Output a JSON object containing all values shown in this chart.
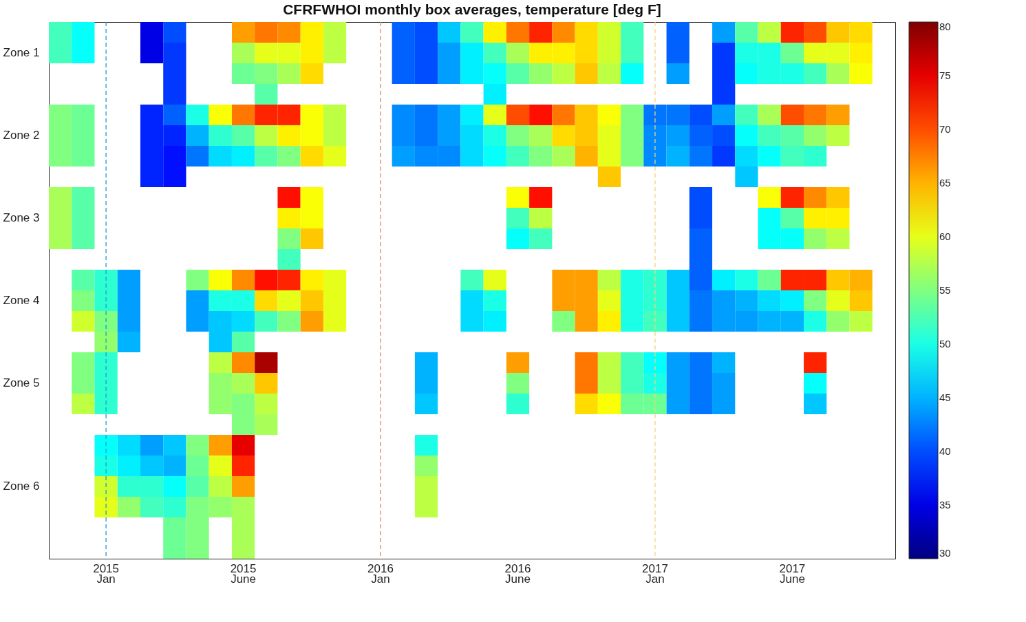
{
  "chart_data": {
    "type": "heatmap",
    "title": "CFRFWHOI monthly box averages, temperature [deg F]",
    "categories": [
      null,
      null,
      "2015\nJan",
      null,
      null,
      null,
      null,
      null,
      "2015\nJune",
      null,
      null,
      null,
      null,
      null,
      "2016\nJan",
      null,
      null,
      null,
      null,
      null,
      "2016\nJune",
      null,
      null,
      null,
      null,
      null,
      "2017\nJan",
      null,
      null,
      null,
      null,
      null,
      "2017\nJune",
      null,
      null,
      null,
      null
    ],
    "y_categories": [
      null,
      "Zone 1",
      null,
      null,
      null,
      "Zone 2",
      null,
      null,
      null,
      "Zone 3",
      null,
      null,
      null,
      "Zone 4",
      null,
      null,
      null,
      "Zone 5",
      null,
      null,
      null,
      null,
      "Zone 6",
      null,
      null,
      null
    ],
    "cells": [
      [
        52,
        49,
        null,
        null,
        35,
        40,
        null,
        null,
        66,
        68,
        67,
        62,
        58,
        null,
        null,
        41,
        40,
        46,
        52,
        62,
        68,
        72,
        67,
        63,
        59,
        52,
        null,
        41,
        null,
        44,
        53,
        58,
        72,
        70,
        64,
        63,
        null
      ],
      [
        52,
        49,
        null,
        null,
        35,
        39,
        null,
        null,
        57,
        60,
        60,
        62,
        58,
        null,
        null,
        41,
        40,
        44,
        48,
        52,
        57,
        62,
        62,
        63,
        59,
        52,
        null,
        41,
        null,
        39,
        50,
        50,
        54,
        60,
        60,
        62,
        null
      ],
      [
        null,
        null,
        null,
        null,
        null,
        39,
        null,
        null,
        54,
        55,
        57,
        63,
        null,
        null,
        null,
        41,
        40,
        44,
        48,
        49,
        53,
        56,
        58,
        64,
        58,
        49,
        null,
        44,
        null,
        39,
        49,
        50,
        50,
        52,
        57,
        61,
        null
      ],
      [
        null,
        null,
        null,
        null,
        null,
        39,
        null,
        null,
        null,
        53,
        null,
        null,
        null,
        null,
        null,
        null,
        null,
        null,
        null,
        48,
        null,
        null,
        null,
        null,
        null,
        null,
        null,
        null,
        null,
        39,
        null,
        null,
        null,
        null,
        null,
        null,
        null
      ],
      [
        55,
        54,
        null,
        null,
        38,
        41,
        50,
        61,
        68,
        72,
        72,
        61,
        58,
        null,
        null,
        43,
        42,
        44,
        48,
        60,
        70,
        73,
        68,
        64,
        61,
        55,
        42,
        42,
        40,
        44,
        52,
        57,
        70,
        68,
        66,
        null,
        null
      ],
      [
        55,
        54,
        null,
        null,
        38,
        38,
        45,
        51,
        53,
        58,
        62,
        61,
        58,
        null,
        null,
        43,
        42,
        44,
        47,
        50,
        55,
        57,
        63,
        64,
        60,
        55,
        43,
        44,
        41,
        40,
        49,
        52,
        53,
        56,
        58,
        null,
        null
      ],
      [
        55,
        54,
        null,
        null,
        38,
        37,
        42,
        47,
        48,
        53,
        55,
        63,
        60,
        null,
        null,
        44,
        43,
        43,
        47,
        49,
        52,
        55,
        57,
        65,
        60,
        55,
        43,
        45,
        42,
        39,
        47,
        49,
        52,
        51,
        null,
        null,
        null
      ],
      [
        null,
        null,
        null,
        null,
        38,
        37,
        null,
        null,
        null,
        null,
        null,
        null,
        null,
        null,
        null,
        null,
        null,
        null,
        null,
        null,
        null,
        null,
        null,
        null,
        64,
        null,
        null,
        null,
        null,
        null,
        46,
        null,
        null,
        null,
        null,
        null,
        null
      ],
      [
        57,
        53,
        null,
        null,
        null,
        null,
        null,
        null,
        null,
        null,
        73,
        61,
        null,
        null,
        null,
        null,
        null,
        null,
        null,
        null,
        61,
        73,
        null,
        null,
        null,
        null,
        null,
        null,
        40,
        null,
        null,
        61,
        72,
        67,
        64,
        null,
        null
      ],
      [
        57,
        53,
        null,
        null,
        null,
        null,
        null,
        null,
        null,
        null,
        62,
        61,
        null,
        null,
        null,
        null,
        null,
        null,
        null,
        null,
        52,
        58,
        null,
        null,
        null,
        null,
        null,
        null,
        40,
        null,
        null,
        49,
        53,
        62,
        62,
        null,
        null
      ],
      [
        57,
        53,
        null,
        null,
        null,
        null,
        null,
        null,
        null,
        null,
        55,
        64,
        null,
        null,
        null,
        null,
        null,
        null,
        null,
        null,
        49,
        52,
        null,
        null,
        null,
        null,
        null,
        null,
        41,
        null,
        null,
        49,
        49,
        56,
        58,
        null,
        null
      ],
      [
        null,
        null,
        null,
        null,
        null,
        null,
        null,
        null,
        null,
        null,
        52,
        null,
        null,
        null,
        null,
        null,
        null,
        null,
        null,
        null,
        null,
        null,
        null,
        null,
        null,
        null,
        null,
        null,
        41,
        null,
        null,
        null,
        null,
        null,
        null,
        null,
        null
      ],
      [
        null,
        53,
        51,
        44,
        null,
        null,
        55,
        61,
        67,
        73,
        72,
        62,
        60,
        null,
        null,
        null,
        null,
        null,
        52,
        60,
        null,
        null,
        66,
        66,
        58,
        50,
        51,
        46,
        41,
        48,
        50,
        54,
        72,
        72,
        64,
        65,
        null
      ],
      [
        null,
        55,
        51,
        44,
        null,
        null,
        44,
        50,
        50,
        63,
        60,
        64,
        60,
        null,
        null,
        null,
        null,
        null,
        47,
        50,
        null,
        null,
        66,
        66,
        60,
        50,
        51,
        46,
        42,
        44,
        45,
        47,
        48,
        55,
        60,
        64,
        null
      ],
      [
        null,
        59,
        55,
        44,
        null,
        null,
        44,
        46,
        47,
        52,
        55,
        66,
        60,
        null,
        null,
        null,
        null,
        null,
        47,
        48,
        null,
        null,
        55,
        66,
        62,
        50,
        52,
        46,
        42,
        44,
        44,
        45,
        45,
        50,
        56,
        58,
        null
      ],
      [
        null,
        null,
        56,
        45,
        null,
        null,
        null,
        46,
        53,
        null,
        null,
        null,
        null,
        null,
        null,
        null,
        null,
        null,
        null,
        null,
        null,
        null,
        null,
        null,
        null,
        null,
        null,
        null,
        null,
        null,
        null,
        null,
        null,
        null,
        null,
        null,
        null
      ],
      [
        null,
        55,
        51,
        null,
        null,
        null,
        null,
        58,
        67,
        78,
        null,
        null,
        null,
        null,
        null,
        null,
        45,
        null,
        null,
        null,
        66,
        null,
        null,
        68,
        58,
        52,
        49,
        44,
        42,
        45,
        null,
        null,
        null,
        72,
        null,
        null,
        null
      ],
      [
        null,
        55,
        51,
        null,
        null,
        null,
        null,
        56,
        57,
        64,
        null,
        null,
        null,
        null,
        null,
        null,
        45,
        null,
        null,
        null,
        55,
        null,
        null,
        68,
        58,
        52,
        50,
        44,
        42,
        44,
        null,
        null,
        null,
        49,
        null,
        null,
        null
      ],
      [
        null,
        58,
        51,
        null,
        null,
        null,
        null,
        56,
        55,
        58,
        null,
        null,
        null,
        null,
        null,
        null,
        46,
        null,
        null,
        null,
        51,
        null,
        null,
        63,
        61,
        54,
        54,
        44,
        42,
        44,
        null,
        null,
        null,
        46,
        null,
        null,
        null
      ],
      [
        null,
        null,
        null,
        null,
        null,
        null,
        null,
        null,
        55,
        57,
        null,
        null,
        null,
        null,
        null,
        null,
        null,
        null,
        null,
        null,
        null,
        null,
        null,
        null,
        null,
        null,
        null,
        null,
        null,
        null,
        null,
        null,
        null,
        null,
        null,
        null,
        null
      ],
      [
        null,
        null,
        49,
        47,
        44,
        46,
        55,
        66,
        75,
        null,
        null,
        null,
        null,
        null,
        null,
        null,
        50,
        null,
        null,
        null,
        null,
        null,
        null,
        null,
        null,
        null,
        null,
        null,
        null,
        null,
        null,
        null,
        null,
        null,
        null,
        null,
        null
      ],
      [
        null,
        null,
        50,
        48,
        46,
        45,
        54,
        60,
        72,
        null,
        null,
        null,
        null,
        null,
        null,
        null,
        56,
        null,
        null,
        null,
        null,
        null,
        null,
        null,
        null,
        null,
        null,
        null,
        null,
        null,
        null,
        null,
        null,
        null,
        null,
        null,
        null
      ],
      [
        null,
        null,
        59,
        51,
        51,
        49,
        53,
        58,
        66,
        null,
        null,
        null,
        null,
        null,
        null,
        null,
        58,
        null,
        null,
        null,
        null,
        null,
        null,
        null,
        null,
        null,
        null,
        null,
        null,
        null,
        null,
        null,
        null,
        null,
        null,
        null,
        null
      ],
      [
        null,
        null,
        60,
        56,
        52,
        51,
        55,
        56,
        57,
        null,
        null,
        null,
        null,
        null,
        null,
        null,
        58,
        null,
        null,
        null,
        null,
        null,
        null,
        null,
        null,
        null,
        null,
        null,
        null,
        null,
        null,
        null,
        null,
        null,
        null,
        null,
        null
      ],
      [
        null,
        null,
        null,
        null,
        null,
        54,
        55,
        null,
        57,
        null,
        null,
        null,
        null,
        null,
        null,
        null,
        null,
        null,
        null,
        null,
        null,
        null,
        null,
        null,
        null,
        null,
        null,
        null,
        null,
        null,
        null,
        null,
        null,
        null,
        null,
        null,
        null
      ],
      [
        null,
        null,
        null,
        null,
        null,
        54,
        55,
        null,
        57,
        null,
        null,
        null,
        null,
        null,
        null,
        null,
        null,
        null,
        null,
        null,
        null,
        null,
        null,
        null,
        null,
        null,
        null,
        null,
        null,
        null,
        null,
        null,
        null,
        null,
        null,
        null,
        null
      ]
    ],
    "clim": [
      30,
      80
    ],
    "cticks": [
      30,
      35,
      40,
      45,
      50,
      55,
      60,
      65,
      70,
      75,
      80
    ],
    "ref_lines": [
      {
        "axis": "x",
        "value": "2015\nJan",
        "color": "#1f9ad8",
        "line_style": "dashed"
      },
      {
        "axis": "x",
        "value": "2016\nJan",
        "color": "#d98a6a",
        "line_style": "dashed"
      },
      {
        "axis": "x",
        "value": "2017\nJan",
        "color": "#f2d27a",
        "line_style": "dashed"
      }
    ]
  }
}
